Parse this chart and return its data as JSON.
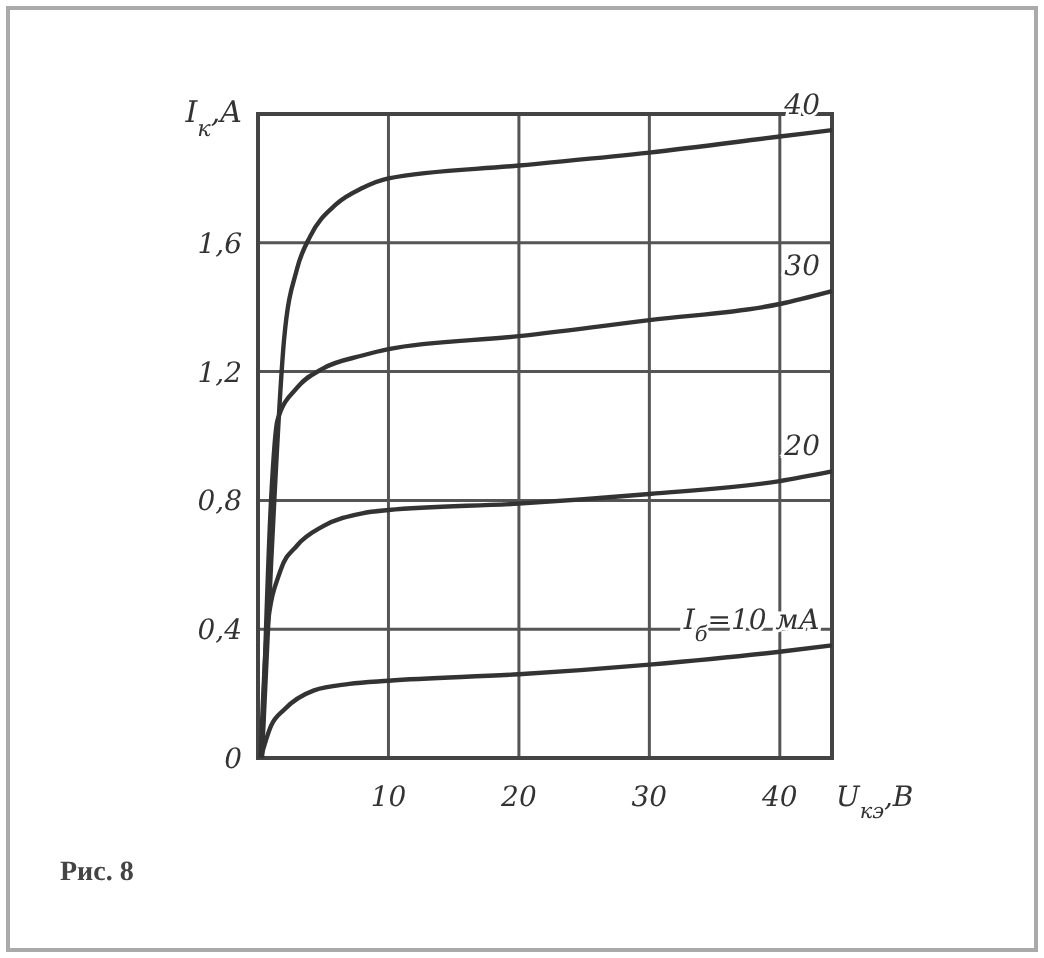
{
  "chart_data": {
    "type": "line",
    "xlabel": "U$_{кэ}$,B",
    "ylabel": "I$_{к}$,A",
    "annotations": [
      "Рис. 8"
    ],
    "xlim": [
      0,
      44
    ],
    "ylim": [
      0,
      2
    ],
    "xticks": [
      10,
      20,
      30,
      40
    ],
    "yticks": [
      0,
      {
        "value": 0.4,
        "label": "0,4"
      },
      {
        "value": 0.8,
        "label": "0,8"
      },
      {
        "value": 1.2,
        "label": "1,2"
      },
      {
        "value": 1.6,
        "label": "1,6"
      },
      {
        "value": 2,
        "label": null
      }
    ],
    "grid": true,
    "marker": "none",
    "line_style": "solid",
    "series": [
      {
        "name": "40",
        "color": "#333333",
        "x": [
          0.3,
          1,
          2,
          3,
          4,
          6,
          8,
          10,
          20,
          30,
          40,
          44
        ],
        "values": [
          0,
          0.6,
          1.3,
          1.52,
          1.62,
          1.72,
          1.77,
          1.8,
          1.84,
          1.88,
          1.93,
          1.95
        ]
      },
      {
        "name": "30",
        "color": "#333333",
        "x": [
          0.3,
          1,
          1.5,
          3,
          5,
          8,
          10,
          20,
          30,
          40,
          44
        ],
        "values": [
          0,
          0.8,
          1.05,
          1.15,
          1.21,
          1.25,
          1.27,
          1.31,
          1.36,
          1.41,
          1.45
        ]
      },
      {
        "name": "20",
        "color": "#333333",
        "x": [
          0.2,
          0.7,
          1.7,
          3,
          5,
          8,
          10,
          20,
          30,
          40,
          44
        ],
        "values": [
          0,
          0.4,
          0.58,
          0.66,
          0.72,
          0.76,
          0.77,
          0.79,
          0.82,
          0.86,
          0.89
        ]
      },
      {
        "name": "I$_{б}$=10 мА",
        "color": "#333333",
        "x": [
          0.2,
          1,
          2,
          4.3,
          7,
          10,
          20,
          30,
          40,
          44
        ],
        "values": [
          0,
          0.1,
          0.15,
          0.21,
          0.23,
          0.24,
          0.26,
          0.29,
          0.33,
          0.35
        ]
      }
    ]
  }
}
